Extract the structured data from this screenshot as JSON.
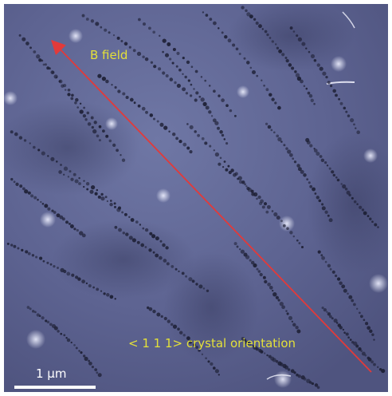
{
  "image": {
    "description_colors": {
      "background_base": "#5f6591",
      "dislocation_dots": "#1e2035",
      "arrow": "#e23a3a",
      "label_text": "#e3e03a",
      "scale_bar": "#ffffff"
    }
  },
  "labels": {
    "field": "B field",
    "orientation": "< 1 1 1> crystal orientation",
    "scale": "1 µm"
  }
}
